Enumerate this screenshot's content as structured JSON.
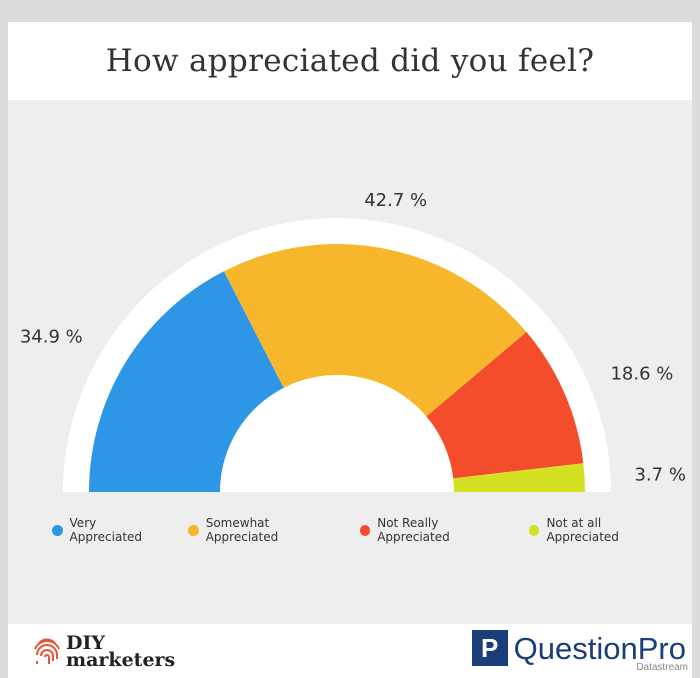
{
  "chart_data": {
    "type": "pie",
    "variant": "semi-donut",
    "title": "How appreciated did you feel?",
    "categories": [
      "Very Appreciated",
      "Somewhat Appreciated",
      "Not Really Appreciated",
      "Not at all Appreciated"
    ],
    "values": [
      34.9,
      42.7,
      18.6,
      3.7
    ],
    "labels": [
      "34.9 %",
      "42.7 %",
      "18.6 %",
      "3.7 %"
    ],
    "colors": [
      "#2e96e6",
      "#f7b72c",
      "#f44d2b",
      "#d5df24"
    ],
    "legend_position": "bottom"
  },
  "footer": {
    "left_logo_top": "DIY",
    "left_logo_bottom": "marketers",
    "right_logo_mark": "P",
    "right_logo_text": "QuestionPro",
    "right_logo_sub": "Datastream"
  }
}
